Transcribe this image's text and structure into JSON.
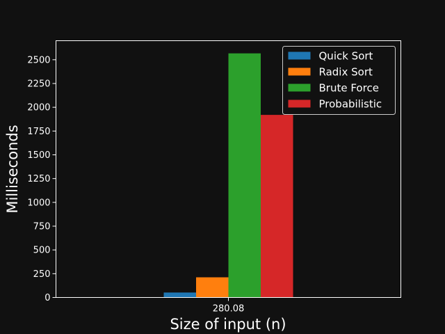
{
  "chart_data": {
    "type": "bar",
    "categories": [
      "280.08"
    ],
    "series": [
      {
        "name": "Quick Sort",
        "color": "#1f77b4",
        "values": [
          52
        ]
      },
      {
        "name": "Radix Sort",
        "color": "#ff7f0e",
        "values": [
          212
        ]
      },
      {
        "name": "Brute Force",
        "color": "#2ca02c",
        "values": [
          2567
        ]
      },
      {
        "name": "Probabilistic",
        "color": "#d62728",
        "values": [
          1920
        ]
      }
    ],
    "xlabel": "Size of input (n)",
    "ylabel": "Milliseconds",
    "ylim": [
      0,
      2700
    ],
    "yticks": [
      0,
      250,
      500,
      750,
      1000,
      1250,
      1500,
      1750,
      2000,
      2250,
      2500
    ],
    "legend_position": "top-right",
    "grid": false,
    "background": "#111111",
    "text_color": "#ffffff"
  }
}
